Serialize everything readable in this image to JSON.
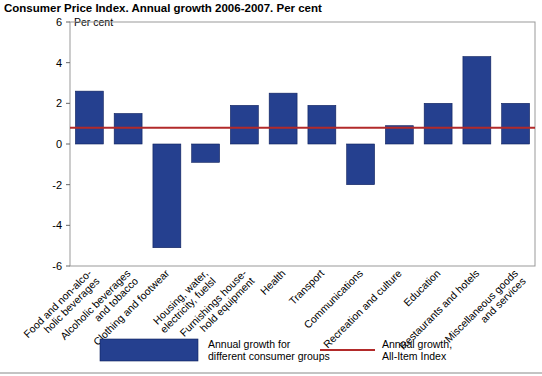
{
  "chart_data": {
    "type": "bar",
    "title": "Consumer Price Index. Annual growth 2006-2007. Per cent",
    "y_label": "Per cent",
    "categories": [
      "Food and non-alco-\nholic beverages",
      "Alcoholic beverages\nand tobacco",
      "Clothing and footwear",
      "Housing, water,\nelectricity, fuelsl",
      "Furnishings house-\nhold equipment",
      "Health",
      "Transport",
      "Communications",
      "Recreation and culture",
      "Education",
      "Restaurants and hotels",
      "Miscellaneous goods\nand services"
    ],
    "series": [
      {
        "name": "Annual growth for\ndifferent consumer groups",
        "type": "bar",
        "color": "#25408f",
        "values": [
          2.6,
          1.5,
          -5.1,
          -0.9,
          1.9,
          2.5,
          1.9,
          -2.0,
          0.9,
          2.0,
          4.3,
          2.0
        ]
      },
      {
        "name": "Annual growth,\nAll-Item Index",
        "type": "line",
        "color": "#b22a2a",
        "values": [
          0.8,
          0.8,
          0.8,
          0.8,
          0.8,
          0.8,
          0.8,
          0.8,
          0.8,
          0.8,
          0.8,
          0.8
        ]
      }
    ],
    "ylim": [
      -6,
      6
    ],
    "yticks": [
      -6,
      -4,
      -2,
      0,
      2,
      4,
      6
    ],
    "grid": false,
    "legend": "bottom"
  }
}
